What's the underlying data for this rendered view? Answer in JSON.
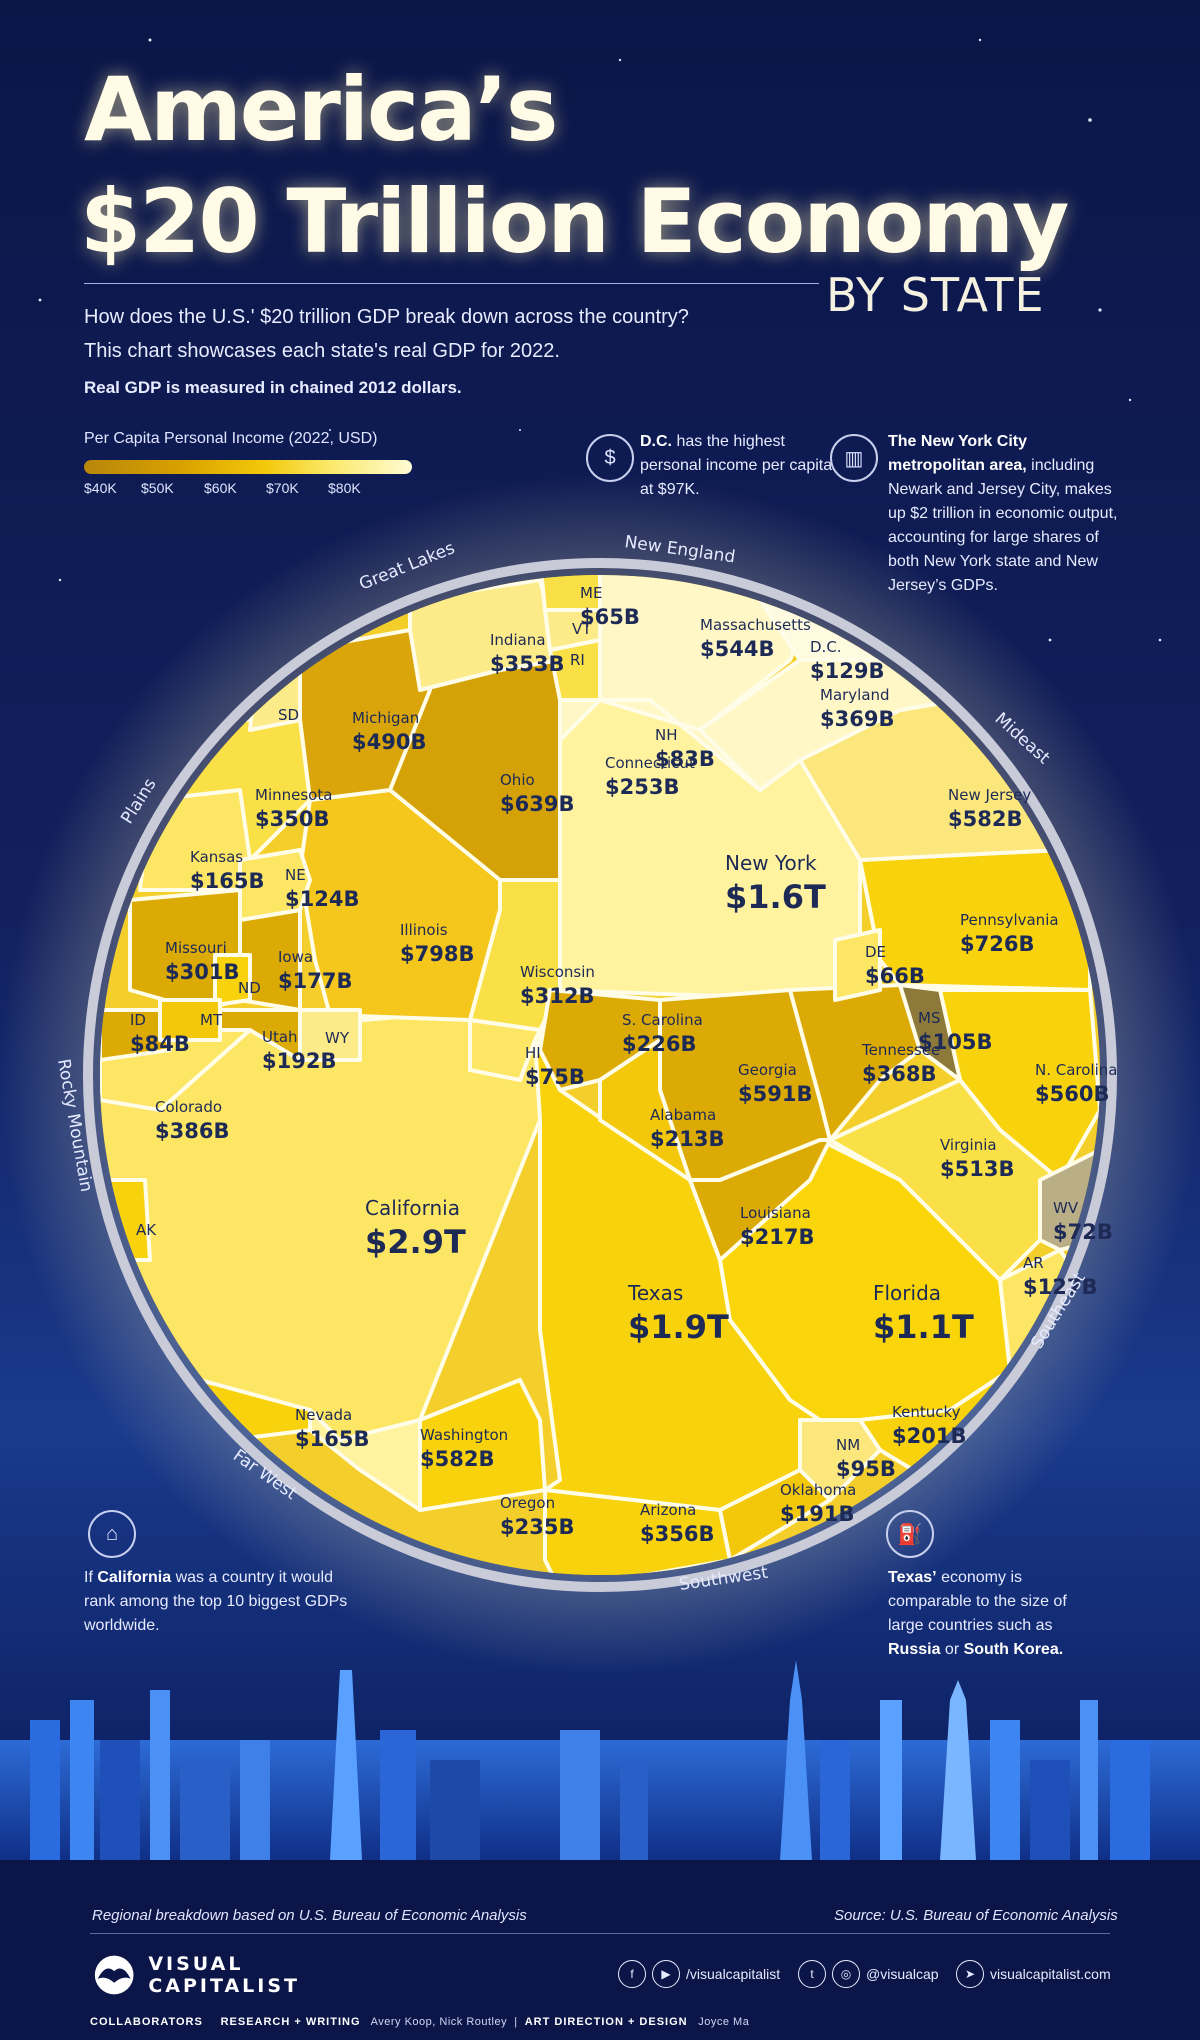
{
  "title": {
    "line1": "America’s",
    "line2": "$20 Trillion Economy",
    "by": "BY STATE"
  },
  "intro": {
    "line1": "How does the U.S.' $20 trillion GDP break down across the country?",
    "line2": "This chart showcases each state's real GDP for 2022.",
    "line3": "Real GDP is measured in chained 2012 dollars."
  },
  "legend": {
    "title": "Per Capita Personal Income (2022, USD)",
    "ticks": [
      "$40K",
      "$50K",
      "$60K",
      "$70K",
      "$80K"
    ]
  },
  "notes": {
    "dc": {
      "bold": "D.C.",
      "text": "has the highest personal income per capita at $97K."
    },
    "nyc": {
      "bold": "The New York City metropolitan area,",
      "text": "including Newark and Jersey City, makes up $2 trillion in economic output, accounting for large shares of both New York state and New Jersey’s GDPs."
    },
    "california": {
      "pre": "If",
      "bold": "California",
      "text": "was a country it would rank among the top 10 biggest GDPs worldwide."
    },
    "texas": {
      "bold": "Texas’",
      "text": "economy is comparable to the size of large countries such as",
      "bold2": "Russia",
      "mid": "or",
      "bold3": "South Korea."
    }
  },
  "regions": [
    "Great Lakes",
    "New England",
    "Mideast",
    "Plains",
    "Rocky Mountain",
    "Far West",
    "Southwest",
    "Southeast"
  ],
  "chart_data": {
    "type": "voronoi-treemap",
    "title": "America’s $20 Trillion Economy by State",
    "value_unit": "Real GDP 2022 (chained 2012 USD)",
    "color_scale": "Per Capita Personal Income (2022, USD)",
    "states": [
      {
        "name": "California",
        "value": "$2.9T",
        "region": "Far West"
      },
      {
        "name": "Texas",
        "value": "$1.9T",
        "region": "Southwest"
      },
      {
        "name": "New York",
        "value": "$1.6T",
        "region": "Mideast"
      },
      {
        "name": "Florida",
        "value": "$1.1T",
        "region": "Southeast"
      },
      {
        "name": "Illinois",
        "value": "$798B",
        "region": "Great Lakes"
      },
      {
        "name": "Pennsylvania",
        "value": "$726B",
        "region": "Mideast"
      },
      {
        "name": "Ohio",
        "value": "$639B",
        "region": "Great Lakes"
      },
      {
        "name": "Georgia",
        "value": "$591B",
        "region": "Southeast"
      },
      {
        "name": "New Jersey",
        "value": "$582B",
        "region": "Mideast"
      },
      {
        "name": "Washington",
        "value": "$582B",
        "region": "Far West"
      },
      {
        "name": "N. Carolina",
        "value": "$560B",
        "region": "Southeast"
      },
      {
        "name": "Massachusetts",
        "value": "$544B",
        "region": "New England"
      },
      {
        "name": "Virginia",
        "value": "$513B",
        "region": "Southeast"
      },
      {
        "name": "Michigan",
        "value": "$490B",
        "region": "Great Lakes"
      },
      {
        "name": "Colorado",
        "value": "$386B",
        "region": "Rocky Mountain"
      },
      {
        "name": "Maryland",
        "value": "$369B",
        "region": "Mideast"
      },
      {
        "name": "Tennessee",
        "value": "$368B",
        "region": "Southeast"
      },
      {
        "name": "Arizona",
        "value": "$356B",
        "region": "Southwest"
      },
      {
        "name": "Indiana",
        "value": "$353B",
        "region": "Great Lakes"
      },
      {
        "name": "Minnesota",
        "value": "$350B",
        "region": "Plains"
      },
      {
        "name": "Wisconsin",
        "value": "$312B",
        "region": "Great Lakes"
      },
      {
        "name": "Missouri",
        "value": "$301B",
        "region": "Plains"
      },
      {
        "name": "Connecticut",
        "value": "$253B",
        "region": "New England"
      },
      {
        "name": "Oregon",
        "value": "$235B",
        "region": "Far West"
      },
      {
        "name": "S. Carolina",
        "value": "$226B",
        "region": "Southeast"
      },
      {
        "name": "Louisiana",
        "value": "$217B",
        "region": "Southeast"
      },
      {
        "name": "Alabama",
        "value": "$213B",
        "region": "Southeast"
      },
      {
        "name": "Kentucky",
        "value": "$201B",
        "region": "Southeast"
      },
      {
        "name": "Utah",
        "value": "$192B",
        "region": "Rocky Mountain"
      },
      {
        "name": "Oklahoma",
        "value": "$191B",
        "region": "Southwest"
      },
      {
        "name": "Iowa",
        "value": "$177B",
        "region": "Plains"
      },
      {
        "name": "Kansas",
        "value": "$165B",
        "region": "Plains"
      },
      {
        "name": "Nevada",
        "value": "$165B",
        "region": "Far West"
      },
      {
        "name": "D.C.",
        "value": "$129B",
        "region": "Mideast"
      },
      {
        "name": "AR",
        "value": "$127B",
        "region": "Southeast"
      },
      {
        "name": "NE",
        "value": "$124B",
        "region": "Plains"
      },
      {
        "name": "MS",
        "value": "$105B",
        "region": "Southeast"
      },
      {
        "name": "NM",
        "value": "$95B",
        "region": "Southwest"
      },
      {
        "name": "ID",
        "value": "$84B",
        "region": "Rocky Mountain"
      },
      {
        "name": "NH",
        "value": "$83B",
        "region": "New England"
      },
      {
        "name": "HI",
        "value": "$75B",
        "region": "Far West"
      },
      {
        "name": "WV",
        "value": "$72B",
        "region": "Southeast"
      },
      {
        "name": "DE",
        "value": "$66B",
        "region": "Mideast"
      },
      {
        "name": "ME",
        "value": "$65B",
        "region": "New England"
      },
      {
        "name": "RI",
        "value": "",
        "region": "New England"
      },
      {
        "name": "VT",
        "value": "",
        "region": "New England"
      },
      {
        "name": "SD",
        "value": "",
        "region": "Plains"
      },
      {
        "name": "ND",
        "value": "",
        "region": "Plains"
      },
      {
        "name": "MT",
        "value": "",
        "region": "Rocky Mountain"
      },
      {
        "name": "WY",
        "value": "",
        "region": "Rocky Mountain"
      },
      {
        "name": "AK",
        "value": "",
        "region": "Far West"
      }
    ]
  },
  "footer": {
    "regional": "Regional breakdown based on U.S. Bureau of Economic Analysis",
    "source": "Source: U.S. Bureau of Economic Analysis",
    "logo_line1": "VISUAL",
    "logo_line2": "CAPITALIST",
    "social1": "/visualcapitalist",
    "social2": "@visualcap",
    "social3": "visualcapitalist.com",
    "collab_label": "COLLABORATORS",
    "research_label": "RESEARCH + WRITING",
    "research_names": "Avery Koop, Nick Routley",
    "art_label": "ART DIRECTION + DESIGN",
    "art_names": "Joyce Ma"
  }
}
